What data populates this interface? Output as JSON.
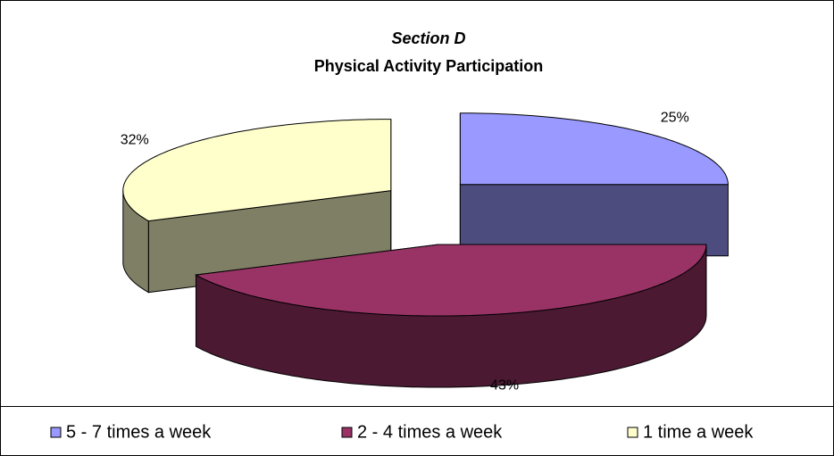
{
  "chart_data": {
    "type": "pie3d",
    "title": "Section D",
    "subtitle": "Physical Activity Participation",
    "categories": [
      "5 - 7 times a week",
      "2 - 4 times a week",
      "1 time a week"
    ],
    "values": [
      25,
      43,
      32
    ],
    "value_labels": [
      "25%",
      "43%",
      "32%"
    ],
    "colors": [
      "#9999ff",
      "#993366",
      "#ffffcc"
    ],
    "legend": "bottom"
  }
}
